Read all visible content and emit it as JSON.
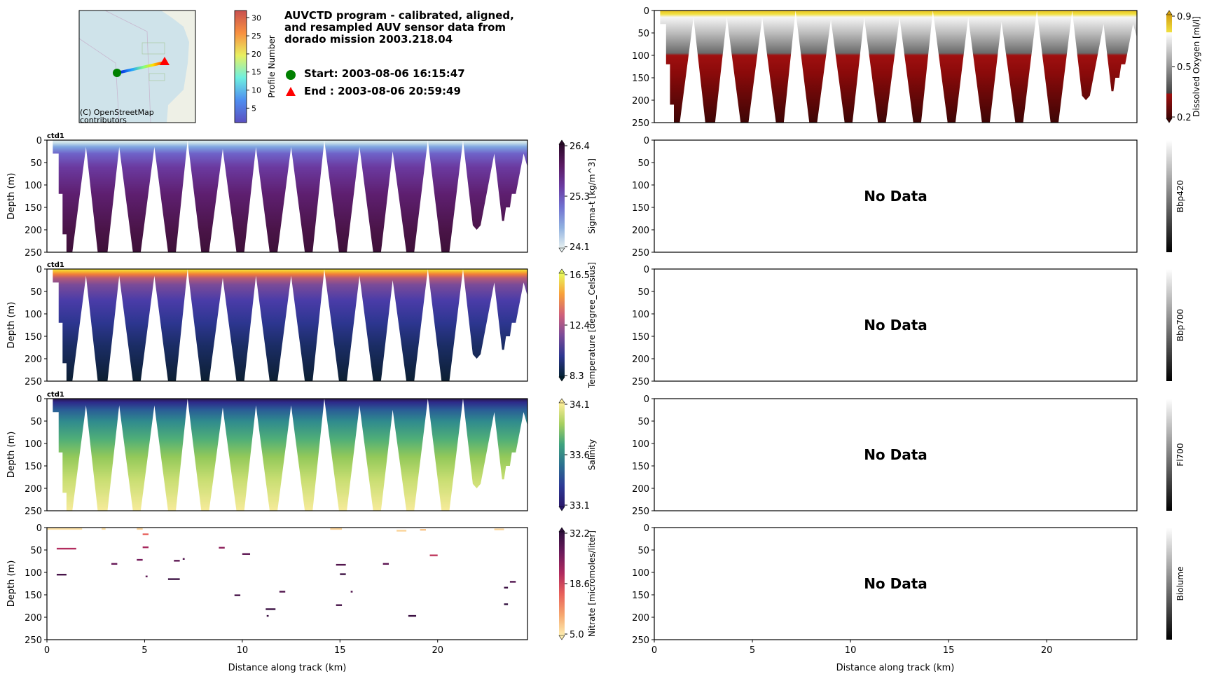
{
  "header": {
    "title_lines": [
      "AUVCTD program - calibrated, aligned,",
      "and resampled AUV sensor data from",
      "dorado mission 2003.218.04"
    ],
    "start_label": "Start: 2003-08-06 16:15:47",
    "end_label": "End  : 2003-08-06 20:59:49",
    "start_color": "#008000",
    "end_color": "#ff0000"
  },
  "map": {
    "attribution_lines": [
      "(C) OpenStreetMap",
      "contributors"
    ],
    "colorbar": {
      "label": "Profile Number",
      "range": [
        1,
        32
      ],
      "ticks": [
        "5",
        "10",
        "15",
        "20",
        "25",
        "30"
      ]
    }
  },
  "axes": {
    "ylabel": "Depth (m)",
    "xlabel": "Distance along track (km)",
    "xlim": [
      0,
      24.6
    ],
    "ylim": [
      250,
      0
    ],
    "xticks": [
      "0",
      "5",
      "10",
      "15",
      "20"
    ],
    "yticks": [
      "0",
      "50",
      "100",
      "150",
      "200",
      "250"
    ]
  },
  "chart_data": {
    "type": "heatmap",
    "sample_envelope_km_m": [
      [
        0.3,
        0
      ],
      [
        0.3,
        30
      ],
      [
        0.6,
        30
      ],
      [
        0.6,
        120
      ],
      [
        0.8,
        120
      ],
      [
        0.8,
        210
      ],
      [
        1.0,
        210
      ],
      [
        1.0,
        250
      ],
      [
        1.3,
        250
      ],
      [
        2.0,
        15
      ],
      [
        2.6,
        250
      ],
      [
        3.1,
        250
      ],
      [
        3.7,
        15
      ],
      [
        4.4,
        250
      ],
      [
        4.8,
        250
      ],
      [
        5.5,
        15
      ],
      [
        6.2,
        250
      ],
      [
        6.6,
        250
      ],
      [
        7.2,
        0
      ],
      [
        7.9,
        250
      ],
      [
        8.3,
        250
      ],
      [
        9.0,
        20
      ],
      [
        9.7,
        250
      ],
      [
        10.1,
        250
      ],
      [
        10.7,
        15
      ],
      [
        11.4,
        250
      ],
      [
        11.8,
        250
      ],
      [
        12.5,
        15
      ],
      [
        13.2,
        250
      ],
      [
        13.6,
        250
      ],
      [
        14.2,
        0
      ],
      [
        14.95,
        250
      ],
      [
        15.35,
        250
      ],
      [
        16.0,
        15
      ],
      [
        16.7,
        250
      ],
      [
        17.1,
        250
      ],
      [
        17.7,
        25
      ],
      [
        18.4,
        250
      ],
      [
        18.8,
        250
      ],
      [
        19.5,
        0
      ],
      [
        20.2,
        250
      ],
      [
        20.6,
        250
      ],
      [
        21.3,
        0
      ],
      [
        21.8,
        190
      ],
      [
        22.0,
        200
      ],
      [
        22.2,
        190
      ],
      [
        22.9,
        30
      ],
      [
        23.3,
        180
      ],
      [
        23.4,
        180
      ],
      [
        23.5,
        150
      ],
      [
        23.7,
        150
      ],
      [
        23.8,
        120
      ],
      [
        24.0,
        120
      ],
      [
        24.4,
        30
      ],
      [
        24.6,
        60
      ],
      [
        24.6,
        0
      ]
    ],
    "panels": [
      {
        "id": "sigma-t",
        "column": "left",
        "row": 1,
        "tag": "ctd1",
        "label": "Sigma-t [kg/m^3]",
        "ticks": [
          "26.4",
          "25.3",
          "24.1"
        ],
        "cmap": [
          "#2b0a2a",
          "#5a1a62",
          "#6b3aa0",
          "#7070d0",
          "#8fb0e0",
          "#e6f0f0"
        ],
        "depth_colors": [
          [
            0,
            "#e6f0f0"
          ],
          [
            6,
            "#c8e0ea"
          ],
          [
            15,
            "#7fa6e0"
          ],
          [
            30,
            "#6f63c9"
          ],
          [
            60,
            "#6b3aa0"
          ],
          [
            120,
            "#5e1f70"
          ],
          [
            200,
            "#4a1448"
          ],
          [
            250,
            "#3d1038"
          ]
        ]
      },
      {
        "id": "temperature",
        "column": "left",
        "row": 2,
        "tag": "ctd1",
        "label": "Temperature [degree_Celsius]",
        "ticks": [
          "16.5",
          "12.4",
          "8.3"
        ],
        "cmap": [
          "#e8fa5b",
          "#f8a03a",
          "#d0607a",
          "#7a4b98",
          "#2d3690",
          "#042333"
        ],
        "depth_colors": [
          [
            0,
            "#f2ee4a"
          ],
          [
            5,
            "#f7c02e"
          ],
          [
            12,
            "#f07a3a"
          ],
          [
            20,
            "#b45a78"
          ],
          [
            35,
            "#7a4b98"
          ],
          [
            70,
            "#4a3ca8"
          ],
          [
            120,
            "#2d3690"
          ],
          [
            170,
            "#1b2d66"
          ],
          [
            250,
            "#0c1f33"
          ]
        ]
      },
      {
        "id": "salinity",
        "column": "left",
        "row": 3,
        "tag": "ctd1",
        "label": "Salinity",
        "ticks": [
          "34.1",
          "33.6",
          "33.1"
        ],
        "cmap": [
          "#fdee99",
          "#a8d060",
          "#3fa37e",
          "#2b7090",
          "#2d3a96",
          "#29186b"
        ],
        "depth_colors": [
          [
            0,
            "#28154a"
          ],
          [
            8,
            "#2d2a8a"
          ],
          [
            25,
            "#2a5d96"
          ],
          [
            50,
            "#2f8a8e"
          ],
          [
            90,
            "#4fae78"
          ],
          [
            130,
            "#93c95a"
          ],
          [
            180,
            "#c8de72"
          ],
          [
            250,
            "#f7eb9a"
          ]
        ]
      },
      {
        "id": "nitrate",
        "column": "left",
        "row": 4,
        "tag": "",
        "label": "Nitrate [micromoles/liter]",
        "ticks": [
          "32.2",
          "18.6",
          "5.0"
        ],
        "cmap": [
          "#2f0f3d",
          "#6b1a5a",
          "#b02a5e",
          "#e8605a",
          "#f6a66e",
          "#fdedb0"
        ],
        "vrange": [
          5.0,
          32.2
        ],
        "segments": [
          [
            0,
            1.8,
            3,
            6
          ],
          [
            2.8,
            3.0,
            3,
            6
          ],
          [
            4.6,
            4.9,
            3,
            7
          ],
          [
            4.9,
            5.2,
            15,
            16
          ],
          [
            0.5,
            1.5,
            47,
            21
          ],
          [
            4.9,
            5.2,
            44,
            22
          ],
          [
            4.6,
            4.9,
            72,
            26
          ],
          [
            3.3,
            3.6,
            81,
            27
          ],
          [
            0.5,
            1.0,
            105,
            30
          ],
          [
            5.05,
            5.15,
            109,
            28
          ],
          [
            6.2,
            6.8,
            115,
            31
          ],
          [
            6.5,
            6.8,
            74,
            28
          ],
          [
            6.95,
            7.05,
            70,
            29
          ],
          [
            8.8,
            9.1,
            45,
            24
          ],
          [
            10.0,
            10.4,
            59,
            28
          ],
          [
            9.6,
            9.9,
            151,
            30
          ],
          [
            11.2,
            11.7,
            182,
            31
          ],
          [
            11.25,
            11.35,
            197,
            31
          ],
          [
            11.9,
            12.2,
            143,
            29
          ],
          [
            14.5,
            15.1,
            3,
            7
          ],
          [
            14.8,
            15.3,
            83,
            29
          ],
          [
            15.0,
            15.3,
            104,
            31
          ],
          [
            15.55,
            15.65,
            143,
            29
          ],
          [
            14.8,
            15.1,
            173,
            30
          ],
          [
            17.2,
            17.5,
            81,
            28
          ],
          [
            17.9,
            18.4,
            7,
            7
          ],
          [
            19.1,
            19.4,
            5,
            8
          ],
          [
            18.5,
            18.9,
            197,
            31
          ],
          [
            19.6,
            20.0,
            62,
            20
          ],
          [
            22.9,
            23.4,
            4,
            7
          ],
          [
            23.7,
            24.0,
            121,
            29
          ],
          [
            23.4,
            23.6,
            134,
            31
          ],
          [
            23.4,
            23.6,
            171,
            32
          ]
        ]
      },
      {
        "id": "dissolved-oxygen",
        "column": "right",
        "row": 0,
        "tag": "",
        "label": "Dissolved Oxygen [ml/l]",
        "ticks": [
          "0.9",
          "0.5",
          "0.2"
        ],
        "cmap_stops": [
          [
            0,
            "#d4a010"
          ],
          [
            0.17,
            "#f0e040"
          ],
          [
            0.171,
            "#ffffff"
          ],
          [
            0.76,
            "#404040"
          ],
          [
            0.761,
            "#a01010"
          ],
          [
            1,
            "#3d0505"
          ]
        ],
        "depth_colors": [
          [
            0,
            "#e8c020"
          ],
          [
            8,
            "#f0e040"
          ],
          [
            15,
            "#f5f5f5"
          ],
          [
            50,
            "#bdbdbd"
          ],
          [
            95,
            "#6a6a6a"
          ],
          [
            100,
            "#a01010"
          ],
          [
            140,
            "#8a0a0a"
          ],
          [
            250,
            "#3d0505"
          ]
        ]
      },
      {
        "id": "bbp420",
        "column": "right",
        "row": 1,
        "label": "Bbp420",
        "nodata": "No Data"
      },
      {
        "id": "bbp700",
        "column": "right",
        "row": 2,
        "label": "Bbp700",
        "nodata": "No Data"
      },
      {
        "id": "fl700",
        "column": "right",
        "row": 3,
        "label": "Fl700",
        "nodata": "No Data"
      },
      {
        "id": "biolume",
        "column": "right",
        "row": 4,
        "label": "Biolume",
        "nodata": "No Data"
      }
    ]
  }
}
